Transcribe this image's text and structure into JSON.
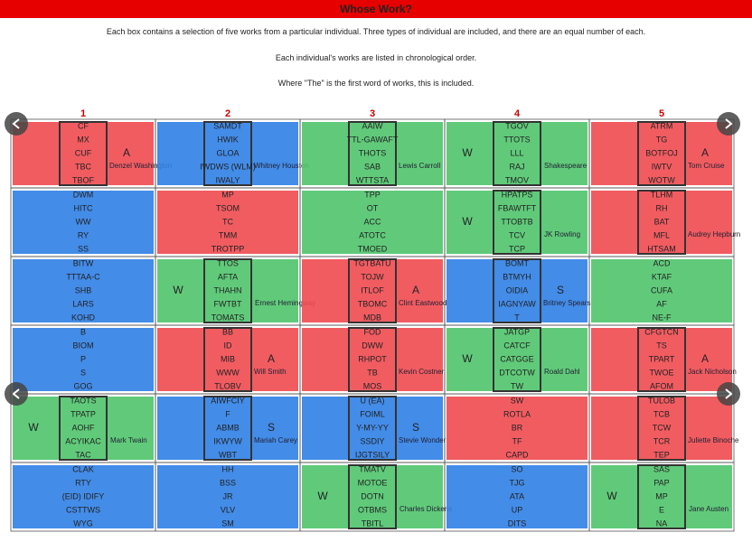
{
  "header": {
    "title": "Whose Work?"
  },
  "intro": [
    "Each box contains a selection of five works from a particular individual. Three types of individual are included, and there are an equal number of each.",
    "Each individual's works are listed in chronological order.",
    "Where \"The\" is the first word of works, this is included."
  ],
  "grid": {
    "columns": [
      "1",
      "2",
      "3",
      "4",
      "5"
    ],
    "rows": [
      [
        {
          "color": "red",
          "works": [
            "CF",
            "MX",
            "CUF",
            "TBC",
            "TBOF"
          ],
          "letter": "A",
          "name": "Denzel Washington",
          "boxed": true
        },
        {
          "color": "blue",
          "works": [
            "SAMDT",
            "HWIK",
            "GLOA",
            "IWDWS (WLM)",
            "IWALY"
          ],
          "name": "Whitney Houston",
          "boxed": true
        },
        {
          "color": "green",
          "works": [
            "AAIW",
            "TTL-GAWAFT",
            "THOTS",
            "SAB",
            "WTTSTA"
          ],
          "name": "Lewis Carroll",
          "boxed": true
        },
        {
          "color": "green",
          "works": [
            "TGOV",
            "TTOTS",
            "LLL",
            "RAJ",
            "TMOV"
          ],
          "letter": "W",
          "name": "Shakespeare",
          "boxed": true
        },
        {
          "color": "red",
          "works": [
            "ATRM",
            "TG",
            "BOTFOJ",
            "IWTV",
            "WOTW"
          ],
          "letter": "A",
          "name": "Tom Cruise",
          "boxed": true
        }
      ],
      [
        {
          "color": "blue",
          "works": [
            "DWM",
            "HITC",
            "WW",
            "RY",
            "SS"
          ],
          "boxed": false
        },
        {
          "color": "red",
          "works": [
            "MP",
            "TSOM",
            "TC",
            "TMM",
            "TROTPP"
          ],
          "boxed": false
        },
        {
          "color": "green",
          "works": [
            "TPP",
            "OT",
            "ACC",
            "ATOTC",
            "TMOED"
          ],
          "boxed": false
        },
        {
          "color": "green",
          "works": [
            "HPATPS",
            "FBAWTFT",
            "TTOBTB",
            "TCV",
            "TCP"
          ],
          "letter": "W",
          "name": "JK Rowling",
          "boxed": true
        },
        {
          "color": "red",
          "works": [
            "TLHM",
            "RH",
            "BAT",
            "MFL",
            "HTSAM"
          ],
          "name": "Audrey Hepburn",
          "boxed": true
        }
      ],
      [
        {
          "color": "blue",
          "works": [
            "BITW",
            "TTTAA-C",
            "SHB",
            "LARS",
            "KOHD"
          ],
          "boxed": false
        },
        {
          "color": "green",
          "works": [
            "TTOS",
            "AFTA",
            "THAHN",
            "FWTBT",
            "TOMATS"
          ],
          "letter": "W",
          "name": "Ernest Hemingway",
          "boxed": true
        },
        {
          "color": "red",
          "works": [
            "TGTBATU",
            "TOJW",
            "ITLOF",
            "TBOMC",
            "MDB"
          ],
          "letter": "A",
          "name": "Clint Eastwood",
          "boxed": true
        },
        {
          "color": "blue",
          "works": [
            "BOMT",
            "BTMYH",
            "OIDIA",
            "IAGNYAW",
            "T"
          ],
          "letter": "S",
          "name": "Britney Spears",
          "boxed": true
        },
        {
          "color": "green",
          "works": [
            "ACD",
            "KTAF",
            "CUFA",
            "AF",
            "NE-F"
          ],
          "boxed": false
        }
      ],
      [
        {
          "color": "blue",
          "works": [
            "B",
            "BIOM",
            "P",
            "S",
            "GOG"
          ],
          "boxed": false
        },
        {
          "color": "red",
          "works": [
            "BB",
            "ID",
            "MIB",
            "WWW",
            "TLOBV"
          ],
          "letter": "A",
          "name": "Will Smith",
          "boxed": true
        },
        {
          "color": "red",
          "works": [
            "FOD",
            "DWW",
            "RHPOT",
            "TB",
            "MOS"
          ],
          "name": "Kevin Costner",
          "boxed": true
        },
        {
          "color": "green",
          "works": [
            "JATGP",
            "CATCF",
            "CATGGE",
            "DTCOTW",
            "TW"
          ],
          "letter": "W",
          "name": "Roald Dahl",
          "boxed": true
        },
        {
          "color": "red",
          "works": [
            "CFGTCN",
            "TS",
            "TPART",
            "TWOE",
            "AFOM"
          ],
          "letter": "A",
          "name": "Jack Nicholson",
          "boxed": true
        }
      ],
      [
        {
          "color": "green",
          "works": [
            "TAOTS",
            "TPATP",
            "AOHF",
            "ACYIKAC",
            "TAC"
          ],
          "letter": "W",
          "name": "Mark Twain",
          "boxed": true
        },
        {
          "color": "blue",
          "works": [
            "AIWFCIY",
            "F",
            "ABMB",
            "IKWYW",
            "WBT"
          ],
          "letter": "S",
          "name": "Mariah Carey",
          "boxed": true
        },
        {
          "color": "blue",
          "works": [
            "U (EA)",
            "FOIML",
            "Y-MY-YY",
            "SSDIY",
            "IJGTSILY"
          ],
          "letter": "S",
          "name": "Stevie Wonder",
          "boxed": true
        },
        {
          "color": "red",
          "works": [
            "SW",
            "ROTLA",
            "BR",
            "TF",
            "CAPD"
          ],
          "boxed": false
        },
        {
          "color": "red",
          "works": [
            "TULOB",
            "TCB",
            "TCW",
            "TCR",
            "TEP"
          ],
          "name": "Juliette Binoche",
          "boxed": true
        }
      ],
      [
        {
          "color": "blue",
          "works": [
            "CLAK",
            "RTY",
            "(EID) IDIFY",
            "CSTTWS",
            "WYG"
          ],
          "boxed": false
        },
        {
          "color": "blue",
          "works": [
            "HH",
            "BSS",
            "JR",
            "VLV",
            "SM"
          ],
          "boxed": false
        },
        {
          "color": "green",
          "works": [
            "TMATV",
            "MOTOE",
            "DOTN",
            "OTBMS",
            "TBITL"
          ],
          "letter": "W",
          "name": "Charles Dickens",
          "boxed": true
        },
        {
          "color": "blue",
          "works": [
            "SO",
            "TJG",
            "ATA",
            "UP",
            "DITS"
          ],
          "boxed": false
        },
        {
          "color": "green",
          "works": [
            "SAS",
            "PAP",
            "MP",
            "E",
            "NA"
          ],
          "letter": "W",
          "name": "Jane Austen",
          "boxed": true
        }
      ]
    ]
  }
}
